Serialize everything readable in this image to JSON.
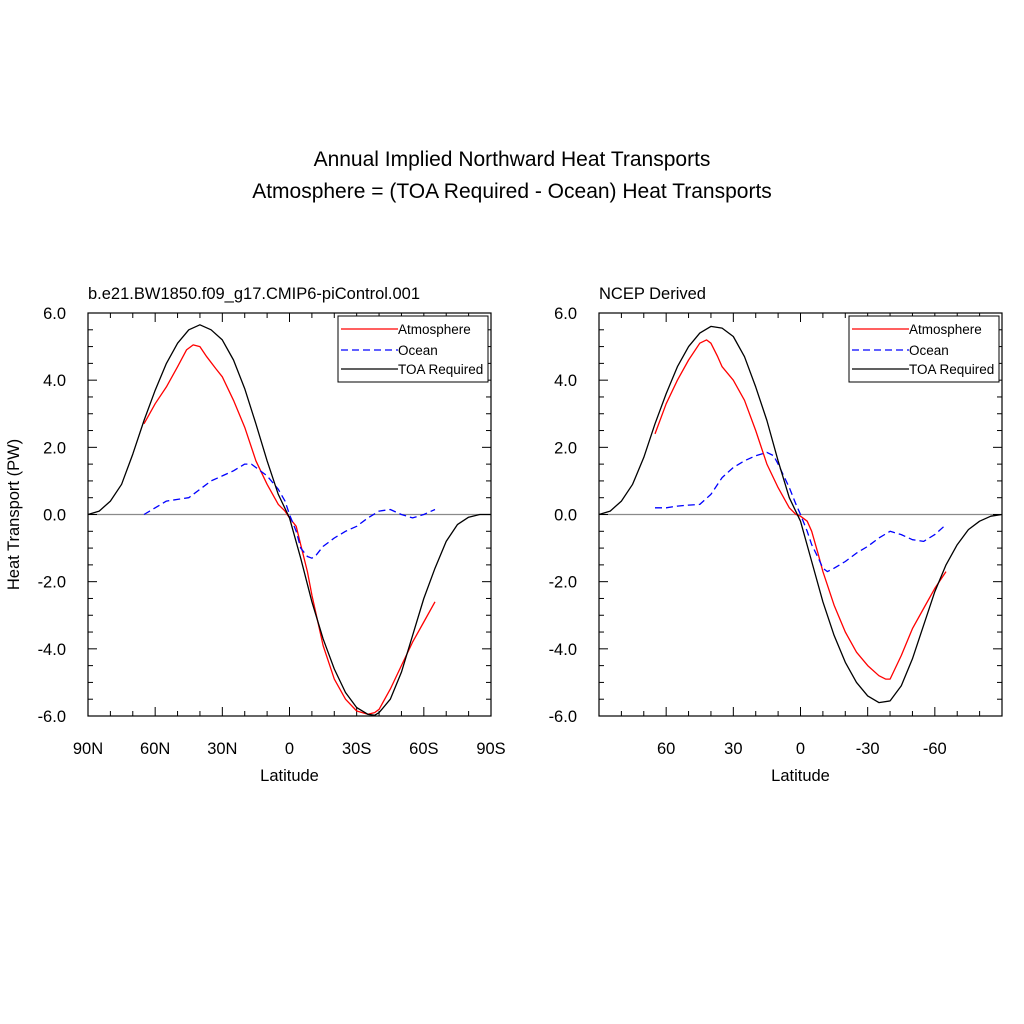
{
  "figure": {
    "title_line1": "Annual Implied Northward Heat Transports",
    "title_line2": "Atmosphere = (TOA Required - Ocean) Heat Transports"
  },
  "chart_data": [
    {
      "type": "line",
      "title": "b.e21.BW1850.f09_g17.CMIP6-piControl.001",
      "xlabel": "Latitude",
      "ylabel": "Heat Transport (PW)",
      "xlim": [
        90,
        -90
      ],
      "ylim": [
        -6,
        6
      ],
      "xticks": [
        90,
        60,
        30,
        0,
        -30,
        -60,
        -90
      ],
      "xtick_labels": [
        "90N",
        "60N",
        "30N",
        "0",
        "30S",
        "60S",
        "90S"
      ],
      "yticks": [
        6,
        4,
        2,
        0,
        -2,
        -4,
        -6
      ],
      "ytick_labels": [
        "6.0",
        "4.0",
        "2.0",
        "0.0",
        "-2.0",
        "-4.0",
        "-6.0"
      ],
      "legend": {
        "position": "top-right",
        "entries": [
          "Atmosphere",
          "Ocean",
          "TOA Required"
        ]
      },
      "series": [
        {
          "name": "Atmosphere",
          "color": "#ff0000",
          "dash": "solid",
          "x": [
            65,
            60,
            55,
            50,
            46,
            43,
            40,
            37,
            33,
            30,
            25,
            20,
            15,
            10,
            5,
            2,
            0,
            -3,
            -5,
            -8,
            -10,
            -15,
            -20,
            -25,
            -30,
            -35,
            -38,
            -40,
            -45,
            -50,
            -55,
            -60,
            -65
          ],
          "y": [
            2.7,
            3.3,
            3.8,
            4.4,
            4.9,
            5.05,
            5.0,
            4.7,
            4.35,
            4.1,
            3.4,
            2.6,
            1.6,
            0.9,
            0.3,
            0.1,
            -0.1,
            -0.35,
            -0.9,
            -1.7,
            -2.4,
            -3.9,
            -4.9,
            -5.5,
            -5.85,
            -5.95,
            -5.9,
            -5.8,
            -5.2,
            -4.5,
            -3.8,
            -3.2,
            -2.6
          ]
        },
        {
          "name": "Ocean",
          "color": "#0000ff",
          "dash": "dashed",
          "x": [
            65,
            60,
            55,
            50,
            45,
            40,
            35,
            30,
            25,
            20,
            17,
            15,
            10,
            5,
            2,
            0,
            -3,
            -5,
            -8,
            -10,
            -12,
            -15,
            -20,
            -25,
            -30,
            -35,
            -40,
            -45,
            -50,
            -55,
            -60,
            -65
          ],
          "y": [
            0.0,
            0.2,
            0.4,
            0.45,
            0.5,
            0.75,
            1.0,
            1.15,
            1.3,
            1.5,
            1.5,
            1.4,
            1.15,
            0.75,
            0.4,
            0.0,
            -0.5,
            -1.0,
            -1.25,
            -1.3,
            -1.2,
            -0.95,
            -0.7,
            -0.5,
            -0.35,
            -0.1,
            0.1,
            0.15,
            0.0,
            -0.1,
            0.0,
            0.15
          ]
        },
        {
          "name": "TOA Required",
          "color": "#000000",
          "dash": "solid",
          "x": [
            90,
            85,
            80,
            75,
            70,
            65,
            60,
            55,
            50,
            45,
            40,
            35,
            30,
            25,
            20,
            15,
            10,
            5,
            0,
            -5,
            -10,
            -15,
            -20,
            -25,
            -30,
            -35,
            -38,
            -40,
            -45,
            -50,
            -55,
            -60,
            -65,
            -70,
            -75,
            -80,
            -85,
            -90
          ],
          "y": [
            0.0,
            0.1,
            0.4,
            0.9,
            1.8,
            2.8,
            3.7,
            4.5,
            5.1,
            5.5,
            5.65,
            5.5,
            5.2,
            4.6,
            3.75,
            2.7,
            1.6,
            0.6,
            -0.1,
            -1.3,
            -2.6,
            -3.7,
            -4.6,
            -5.3,
            -5.75,
            -5.95,
            -5.98,
            -5.9,
            -5.5,
            -4.7,
            -3.6,
            -2.5,
            -1.6,
            -0.8,
            -0.3,
            -0.08,
            0.0,
            0.0
          ]
        }
      ]
    },
    {
      "type": "line",
      "title": "NCEP Derived",
      "xlabel": "Latitude",
      "ylabel": "",
      "xlim": [
        90,
        -90
      ],
      "ylim": [
        -6,
        6
      ],
      "xticks": [
        60,
        30,
        0,
        -30,
        -60
      ],
      "xtick_labels": [
        "60",
        "30",
        "0",
        "-30",
        "-60"
      ],
      "yticks": [
        6,
        4,
        2,
        0,
        -2,
        -4,
        -6
      ],
      "ytick_labels": [
        "6.0",
        "4.0",
        "2.0",
        "0.0",
        "-2.0",
        "-4.0",
        "-6.0"
      ],
      "legend": {
        "position": "top-right",
        "entries": [
          "Atmosphere",
          "Ocean",
          "TOA Required"
        ]
      },
      "series": [
        {
          "name": "Atmosphere",
          "color": "#ff0000",
          "dash": "solid",
          "x": [
            65,
            60,
            55,
            50,
            45,
            42,
            40,
            37,
            35,
            30,
            25,
            20,
            15,
            10,
            5,
            2,
            0,
            -3,
            -5,
            -8,
            -10,
            -15,
            -20,
            -25,
            -30,
            -35,
            -38,
            -40,
            -45,
            -50,
            -55,
            -60,
            -65
          ],
          "y": [
            2.4,
            3.3,
            4.0,
            4.6,
            5.1,
            5.2,
            5.1,
            4.7,
            4.4,
            4.0,
            3.4,
            2.5,
            1.5,
            0.8,
            0.2,
            0.0,
            -0.05,
            -0.2,
            -0.5,
            -1.2,
            -1.7,
            -2.7,
            -3.5,
            -4.1,
            -4.5,
            -4.8,
            -4.9,
            -4.9,
            -4.2,
            -3.4,
            -2.8,
            -2.2,
            -1.7
          ]
        },
        {
          "name": "Ocean",
          "color": "#0000ff",
          "dash": "dashed",
          "x": [
            65,
            60,
            55,
            50,
            45,
            40,
            35,
            30,
            25,
            20,
            15,
            12,
            10,
            5,
            2,
            0,
            -3,
            -5,
            -8,
            -10,
            -12,
            -15,
            -20,
            -25,
            -30,
            -35,
            -40,
            -45,
            -50,
            -55,
            -60,
            -65
          ],
          "y": [
            0.2,
            0.2,
            0.25,
            0.28,
            0.3,
            0.6,
            1.1,
            1.4,
            1.6,
            1.75,
            1.85,
            1.75,
            1.5,
            0.8,
            0.3,
            0.0,
            -0.5,
            -0.9,
            -1.3,
            -1.6,
            -1.7,
            -1.6,
            -1.4,
            -1.15,
            -0.95,
            -0.7,
            -0.5,
            -0.6,
            -0.75,
            -0.8,
            -0.6,
            -0.3
          ]
        },
        {
          "name": "TOA Required",
          "color": "#000000",
          "dash": "solid",
          "x": [
            90,
            85,
            80,
            75,
            70,
            65,
            60,
            55,
            50,
            45,
            40,
            35,
            30,
            25,
            20,
            15,
            10,
            5,
            0,
            -5,
            -10,
            -15,
            -20,
            -25,
            -30,
            -35,
            -40,
            -45,
            -50,
            -55,
            -60,
            -65,
            -70,
            -75,
            -80,
            -85,
            -90
          ],
          "y": [
            0.0,
            0.1,
            0.4,
            0.9,
            1.7,
            2.7,
            3.6,
            4.4,
            5.0,
            5.4,
            5.6,
            5.55,
            5.3,
            4.7,
            3.8,
            2.8,
            1.6,
            0.5,
            -0.2,
            -1.4,
            -2.6,
            -3.6,
            -4.4,
            -5.0,
            -5.4,
            -5.6,
            -5.55,
            -5.1,
            -4.3,
            -3.3,
            -2.3,
            -1.5,
            -0.9,
            -0.45,
            -0.2,
            -0.05,
            0.0
          ]
        }
      ]
    }
  ]
}
